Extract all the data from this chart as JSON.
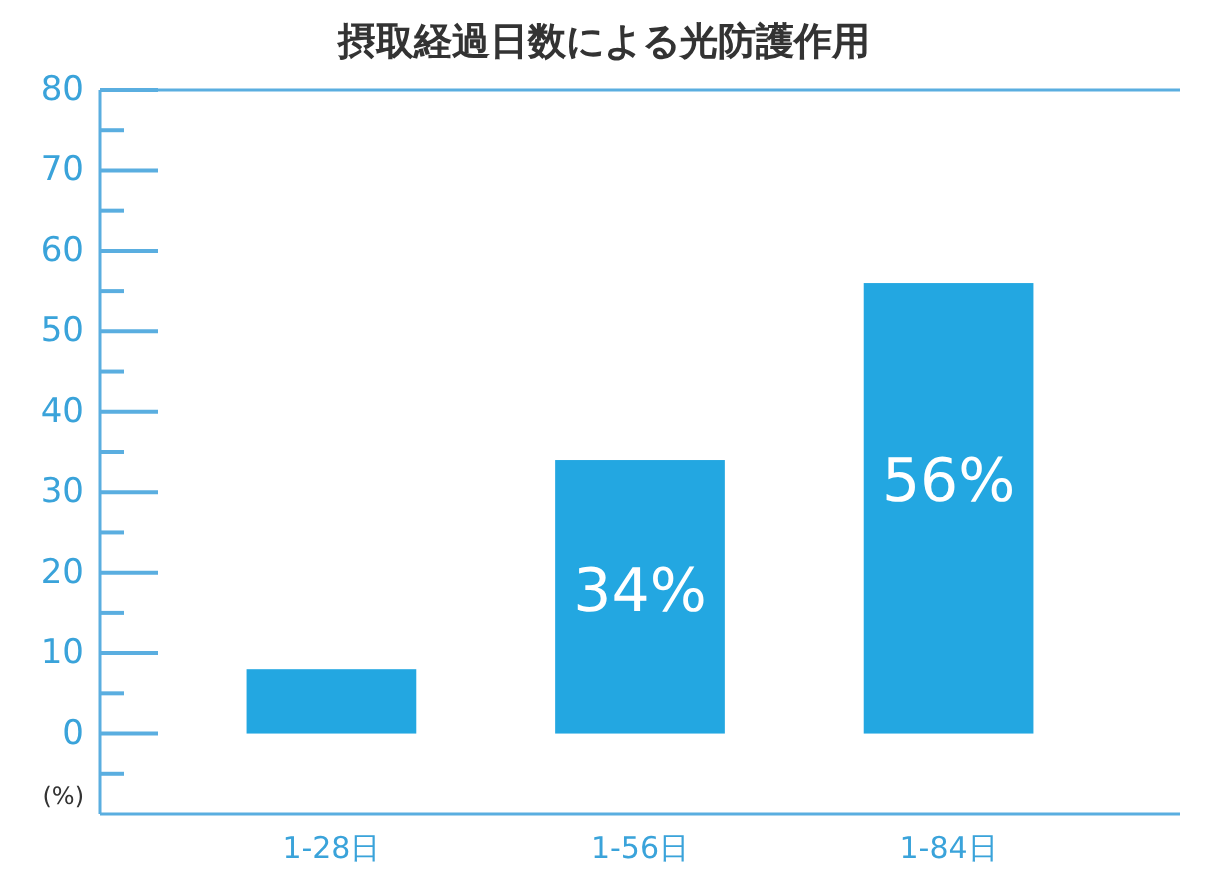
{
  "chart_data": {
    "type": "bar",
    "title": "摂取経過日数による光防護作用",
    "categories": [
      "1-28日",
      "1-56日",
      "1-84日"
    ],
    "values": [
      8,
      34,
      56
    ],
    "color": "#23a7e1",
    "value_labels": [
      null,
      "34%",
      "56%"
    ],
    "ylabel": "(%)",
    "ylim": [
      -10,
      80
    ],
    "yticks": [
      {
        "value": -5,
        "label": null
      },
      0,
      {
        "value": 5,
        "label": null
      },
      10,
      {
        "value": 15,
        "label": null
      },
      20,
      {
        "value": 25,
        "label": null
      },
      30,
      {
        "value": 35,
        "label": null
      },
      40,
      {
        "value": 45,
        "label": null
      },
      50,
      {
        "value": 55,
        "label": null
      },
      60,
      {
        "value": 65,
        "label": null
      },
      70,
      {
        "value": 75,
        "label": null
      },
      80
    ],
    "grid": false
  }
}
